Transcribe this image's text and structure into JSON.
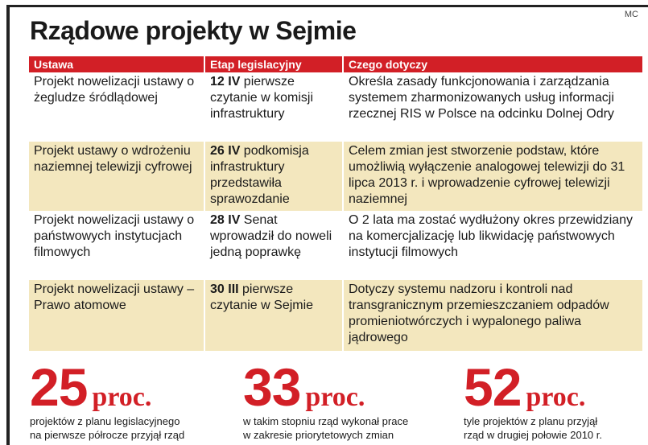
{
  "credit": "MC",
  "title": "Rządowe projekty w Sejmie",
  "table": {
    "headers": [
      "Ustawa",
      "Etap legislacyjny",
      "Czego dotyczy"
    ],
    "rows": [
      {
        "ustawa": "Projekt nowelizacji ustawy o żegludze śródlądowej",
        "etap_date": "12 IV",
        "etap_text": " pierwsze czytanie w komisji infrastruktury",
        "dotyczy": "Określa zasady funkcjonowania i zarządzania systemem zharmonizowanych usług informacji rzecznej RIS w Polsce na odcinku Dolnej Odry"
      },
      {
        "ustawa": "Projekt ustawy o wdrożeniu naziemnej telewizji cyfrowej",
        "etap_date": "26 IV",
        "etap_text": " podkomisja infrastruktury przedstawiła sprawozdanie",
        "dotyczy": "Celem zmian jest stworzenie podstaw, które umożliwią wyłączenie analogowej telewizji do 31 lipca 2013 r. i wprowadzenie cyfrowej telewizji naziemnej"
      },
      {
        "ustawa": "Projekt nowelizacji ustawy o państwowych instytucjach filmowych",
        "etap_date": "28 IV",
        "etap_text": " Senat wprowadził do noweli jedną poprawkę",
        "dotyczy": "O 2 lata ma zostać wydłużony okres przewidziany na komercjalizację lub likwidację państwowych instytucji filmowych"
      },
      {
        "ustawa": "Projekt nowelizacji ustawy – Prawo atomowe",
        "etap_date": "30 III",
        "etap_text": " pierwsze czytanie w Sejmie",
        "dotyczy": "Dotyczy systemu nadzoru i kontroli nad transgranicznym przemieszczaniem odpadów promieniotwórczych i wypalonego paliwa jądrowego"
      }
    ]
  },
  "stats": [
    {
      "value": "25",
      "unit": "proc.",
      "line1": "projektów z planu legislacyjnego",
      "line2": "na pierwsze półrocze przyjął rząd"
    },
    {
      "value": "33",
      "unit": "proc.",
      "line1": "w takim stopniu rząd wykonał prace",
      "line2": "w zakresie priorytetowych zmian"
    },
    {
      "value": "52",
      "unit": "proc.",
      "line1": "tyle projektów z planu przyjął",
      "line2": "rząd w drugiej połowie 2010 r."
    }
  ],
  "colors": {
    "accent": "#d21f26",
    "row_alt": "#f3e7be"
  }
}
